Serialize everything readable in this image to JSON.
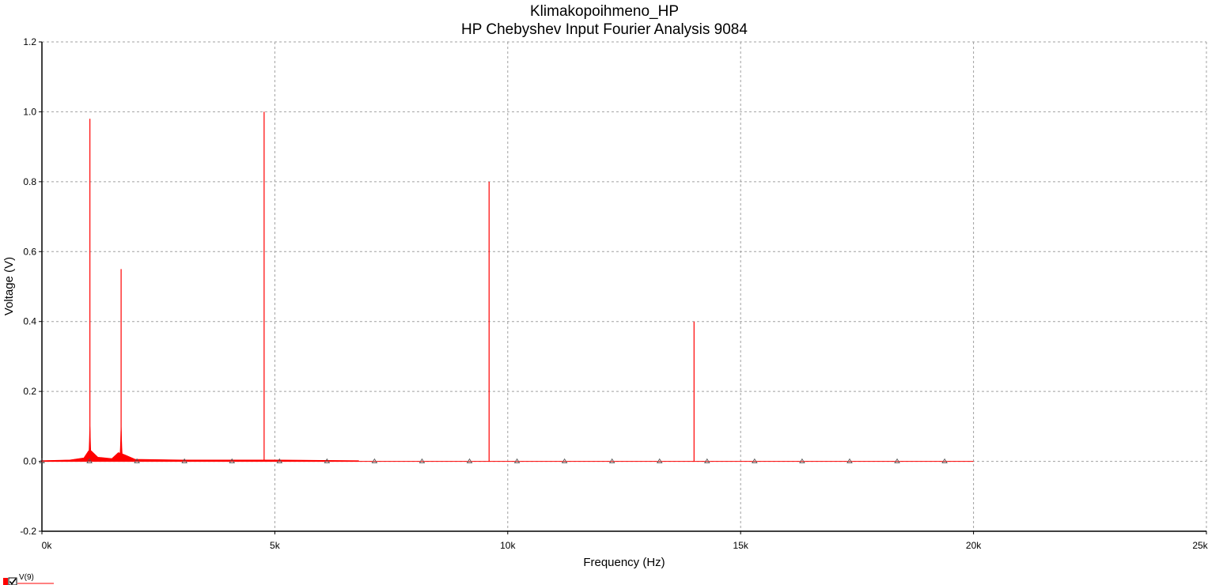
{
  "chart_data": {
    "type": "line",
    "title": "Klimakopoihmeno_HP",
    "subtitle": "HP Chebyshev Input Fourier Analysis 9084",
    "xlabel": "Frequency (Hz)",
    "ylabel": "Voltage (V)",
    "xlim": [
      0,
      25000
    ],
    "ylim": [
      -0.2,
      1.2
    ],
    "x_ticks": [
      0,
      5000,
      10000,
      15000,
      20000,
      25000
    ],
    "x_tick_labels": [
      "0k",
      "5k",
      "10k",
      "15k",
      "20k",
      "25k"
    ],
    "y_ticks": [
      -0.2,
      0.0,
      0.2,
      0.4,
      0.6,
      0.8,
      1.0,
      1.2
    ],
    "y_tick_labels": [
      "-0.2",
      "0.0",
      "0.2",
      "0.4",
      "0.6",
      "0.8",
      "1.0",
      "1.2"
    ],
    "grid": true,
    "series": [
      {
        "name": "V(9)",
        "color": "#ff0000",
        "spectrum_range_hz": [
          0,
          20000
        ],
        "peaks": [
          {
            "x": 1030,
            "y": 0.98
          },
          {
            "x": 1700,
            "y": 0.55
          },
          {
            "x": 4770,
            "y": 1.0
          },
          {
            "x": 9600,
            "y": 0.8
          },
          {
            "x": 14000,
            "y": 0.4
          }
        ],
        "skirt_peaks": [
          {
            "x": 1030,
            "y": 0.1
          },
          {
            "x": 1700,
            "y": 0.1
          }
        ],
        "marker_x": [
          0,
          1020,
          2040,
          3060,
          4080,
          5100,
          6120,
          7140,
          8160,
          9180,
          10200,
          11220,
          12240,
          13260,
          14280,
          15300,
          16320,
          17340,
          18360,
          19380
        ],
        "marker_symbol": "triangle"
      }
    ],
    "legend": {
      "position": "bottom-left",
      "label": "V(9)",
      "checked": true
    }
  }
}
